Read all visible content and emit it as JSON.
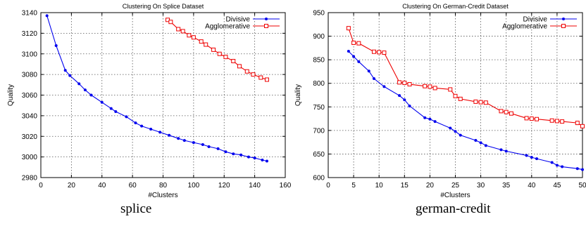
{
  "chart_data": [
    {
      "type": "line",
      "title": "Clustering On Splice Dataset",
      "xlabel": "#Clusters",
      "ylabel": "Quality",
      "caption": "splice",
      "xlim": [
        0,
        160
      ],
      "ylim": [
        2980,
        3140
      ],
      "xticks": [
        0,
        20,
        40,
        60,
        80,
        100,
        120,
        140,
        160
      ],
      "yticks": [
        2980,
        3000,
        3020,
        3040,
        3060,
        3080,
        3100,
        3120,
        3140
      ],
      "grid": true,
      "legend_position": "top-right",
      "series": [
        {
          "name": "Divisive",
          "color": "#0000ee",
          "marker": "dot",
          "x": [
            4,
            10,
            16,
            19,
            25,
            29,
            33,
            40,
            46,
            49,
            56,
            62,
            66,
            72,
            78,
            84,
            90,
            94,
            100,
            106,
            110,
            116,
            121,
            126,
            131,
            136,
            140,
            145,
            148
          ],
          "y": [
            3137,
            3108,
            3084,
            3079,
            3071,
            3065,
            3060,
            3053,
            3047,
            3044,
            3039,
            3033,
            3030,
            3027,
            3024,
            3021,
            3018,
            3016,
            3014,
            3012,
            3010,
            3008,
            3005,
            3003,
            3002,
            3000,
            2999,
            2997,
            2996
          ]
        },
        {
          "name": "Agglomerative",
          "color": "#ee0000",
          "marker": "square",
          "x": [
            83,
            85,
            90,
            93,
            97,
            100,
            105,
            108,
            113,
            117,
            121,
            126,
            130,
            135,
            139,
            144,
            148
          ],
          "y": [
            3133,
            3131,
            3124,
            3122,
            3118,
            3116,
            3112,
            3109,
            3104,
            3100,
            3097,
            3093,
            3088,
            3083,
            3080,
            3077,
            3075
          ]
        }
      ]
    },
    {
      "type": "line",
      "title": "Clustering On German-Credit Dataset",
      "xlabel": "#Clusters",
      "ylabel": "Quality",
      "caption": "german-credit",
      "xlim": [
        0,
        50
      ],
      "ylim": [
        600,
        950
      ],
      "xticks": [
        0,
        5,
        10,
        15,
        20,
        25,
        30,
        35,
        40,
        45,
        50
      ],
      "yticks": [
        600,
        650,
        700,
        750,
        800,
        850,
        900,
        950
      ],
      "grid": true,
      "legend_position": "top-right",
      "series": [
        {
          "name": "Divisive",
          "color": "#0000ee",
          "marker": "dot",
          "x": [
            4,
            5,
            6,
            8,
            9,
            11,
            14,
            15,
            16,
            19,
            20,
            21,
            24,
            25,
            26,
            29,
            30,
            31,
            34,
            35,
            39,
            40,
            41,
            44,
            45,
            46,
            49,
            50
          ],
          "y": [
            868,
            857,
            846,
            826,
            810,
            793,
            774,
            765,
            752,
            727,
            724,
            719,
            705,
            698,
            690,
            679,
            674,
            668,
            659,
            656,
            647,
            643,
            640,
            632,
            626,
            623,
            619,
            617
          ]
        },
        {
          "name": "Agglomerative",
          "color": "#ee0000",
          "marker": "square",
          "x": [
            4,
            5,
            6,
            9,
            10,
            11,
            14,
            15,
            16,
            19,
            20,
            21,
            24,
            25,
            26,
            29,
            30,
            31,
            34,
            35,
            36,
            39,
            40,
            41,
            44,
            45,
            46,
            49,
            50
          ],
          "y": [
            917,
            886,
            885,
            867,
            866,
            865,
            802,
            801,
            798,
            794,
            793,
            790,
            787,
            773,
            767,
            761,
            760,
            759,
            741,
            739,
            736,
            726,
            725,
            724,
            721,
            720,
            719,
            716,
            709
          ]
        }
      ]
    }
  ]
}
